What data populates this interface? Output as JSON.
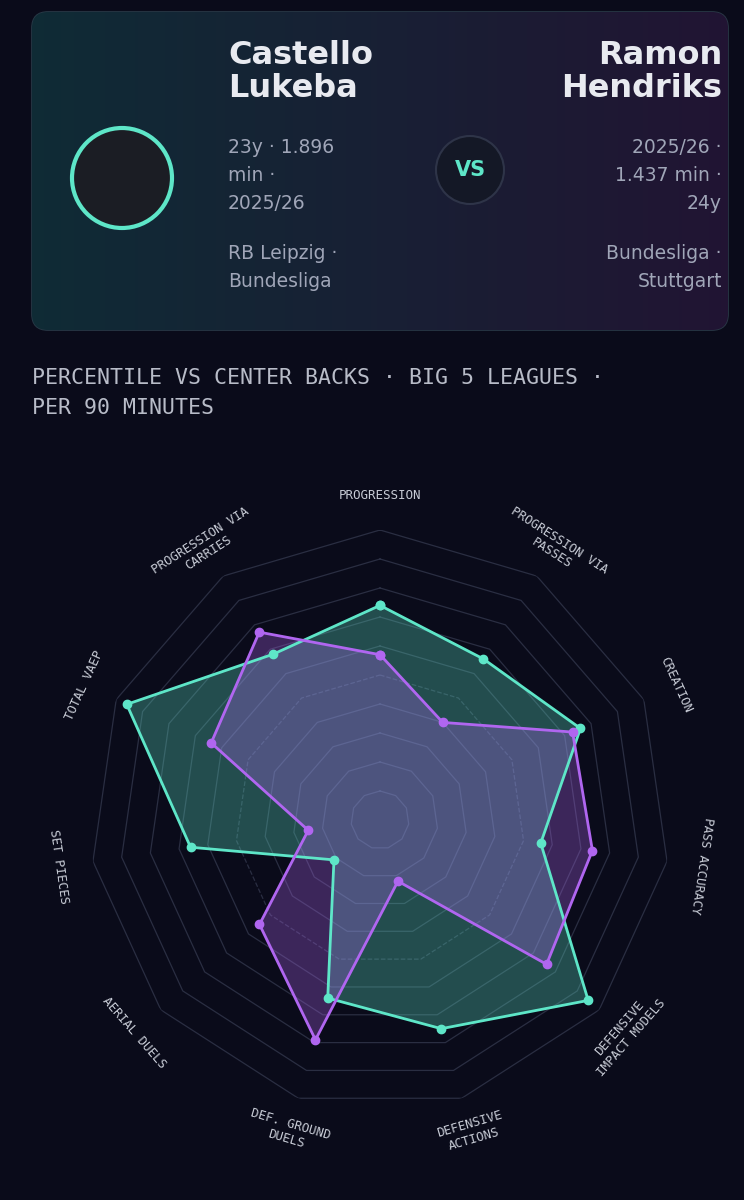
{
  "header": {
    "players": [
      {
        "meta": "23y · 1.896 min · 2025/26",
        "club": "RB Leipzig · Bundesliga"
      },
      {
        "meta": "2025/26 · 1.437 min · 24y",
        "club": "Bundesliga · Stuttgart"
      }
    ],
    "vs": "VS"
  },
  "chart_data": {
    "type": "radar",
    "subtitle": "PERCENTILE VS CENTER BACKS · BIG 5 LEAGUES · PER 90 MINUTES",
    "categories": [
      "PROGRESSION",
      "PROGRESSION VIA PASSES",
      "CREATION",
      "PASS ACCURACY",
      "DEFENSIVE IMPACT MODELS",
      "DEFENSIVE ACTIONS",
      "DEF. GROUND DUELS",
      "AERIAL DUELS",
      "SET PIECES",
      "TOTAL VAEP",
      "PROGRESSION VIA CARRIES"
    ],
    "series": [
      {
        "name": "Castello Lukeba",
        "color": "#5ee6c8",
        "values": [
          74,
          66,
          76,
          56,
          95,
          75,
          64,
          21,
          66,
          96,
          68
        ]
      },
      {
        "name": "Ramon Hendriks",
        "color": "#b066f0",
        "values": [
          57,
          40,
          73,
          74,
          76,
          22,
          79,
          55,
          25,
          64,
          77
        ]
      }
    ],
    "ylim": [
      0,
      100
    ],
    "yticks": [
      0,
      10,
      20,
      30,
      40,
      50,
      60,
      70,
      80,
      90,
      100
    ],
    "grid": true,
    "tick_labels": false,
    "marker": "o"
  }
}
